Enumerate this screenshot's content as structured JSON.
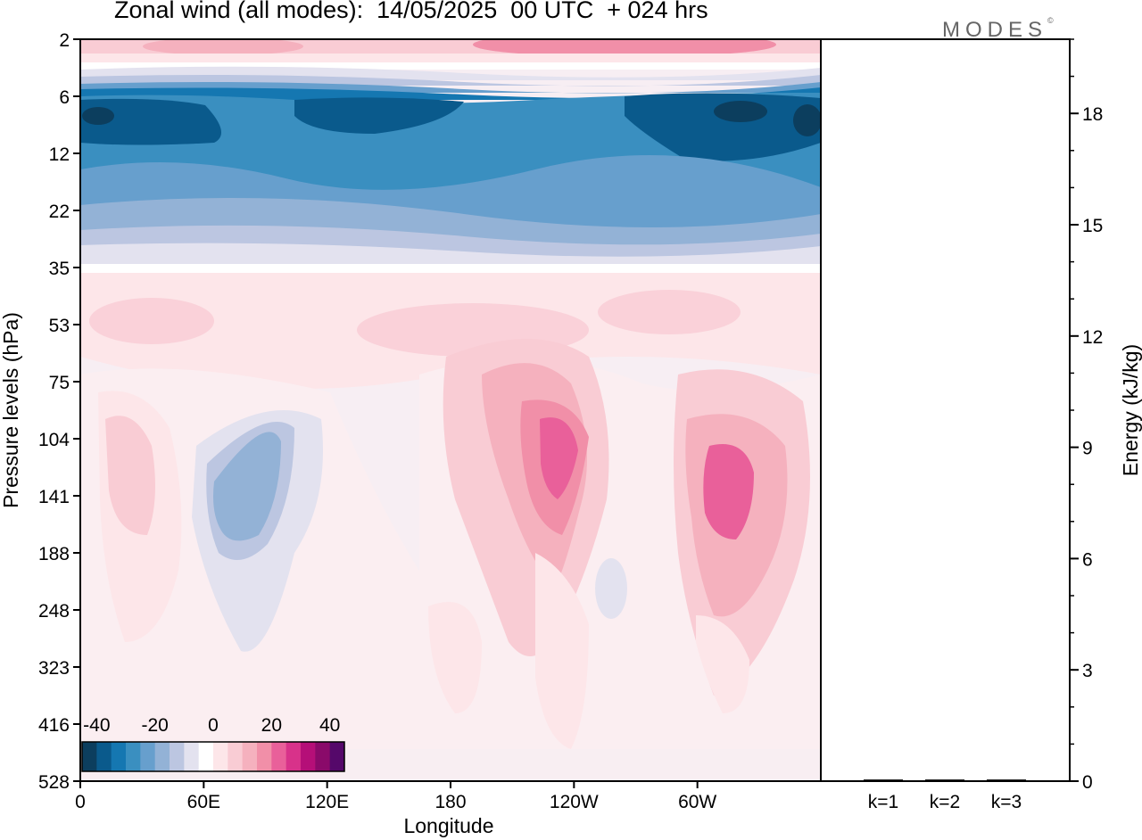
{
  "title": "Zonal wind (all modes):  14/05/2025  00 UTC  + 024 hrs",
  "brand": {
    "text": "MODES",
    "mark": "©"
  },
  "chart_data": [
    {
      "type": "heatmap",
      "title": "Zonal wind (all modes):  14/05/2025  00 UTC  + 024 hrs",
      "xlabel": "Longitude",
      "ylabel": "Pressure levels (hPa)",
      "x_ticks": [
        "0",
        "60E",
        "120E",
        "180",
        "120W",
        "60W"
      ],
      "y_ticks": [
        "2",
        "6",
        "12",
        "22",
        "35",
        "53",
        "75",
        "104",
        "141",
        "188",
        "248",
        "323",
        "416",
        "528"
      ],
      "colorbar": {
        "ticks": [
          "-40",
          "-20",
          "0",
          "20",
          "40"
        ],
        "range": [
          -45,
          45
        ],
        "step": 5,
        "colors": [
          "#0c3e5e",
          "#0a5a8c",
          "#1577b1",
          "#3a8fc0",
          "#679fcd",
          "#93b2d6",
          "#bcc6e1",
          "#e3e2ef",
          "#ffffff",
          "#fde6e9",
          "#f9ccd4",
          "#f5b1be",
          "#f18fa8",
          "#e9609a",
          "#d8328a",
          "#b50f78",
          "#8a0a6a",
          "#55086a"
        ]
      },
      "description_regions": [
        {
          "lon_range": [
            0,
            360
          ],
          "p_range": [
            6,
            22
          ],
          "value": -30
        },
        {
          "lon_range": [
            60,
            100
          ],
          "p_range": [
            104,
            188
          ],
          "value": -18
        },
        {
          "lon_range": [
            235,
            250
          ],
          "p_range": [
            90,
            150
          ],
          "value": 27
        },
        {
          "lon_range": [
            295,
            315
          ],
          "p_range": [
            100,
            170
          ],
          "value": 23
        }
      ]
    },
    {
      "type": "bar",
      "ylabel": "Energy (kJ/kg)",
      "categories": [
        "k=1",
        "k=2",
        "k=3"
      ],
      "values": [
        0.02,
        0.02,
        0.02
      ],
      "ylim": [
        0,
        20
      ],
      "y_ticks": [
        "0",
        "3",
        "6",
        "9",
        "12",
        "15",
        "18"
      ]
    }
  ]
}
